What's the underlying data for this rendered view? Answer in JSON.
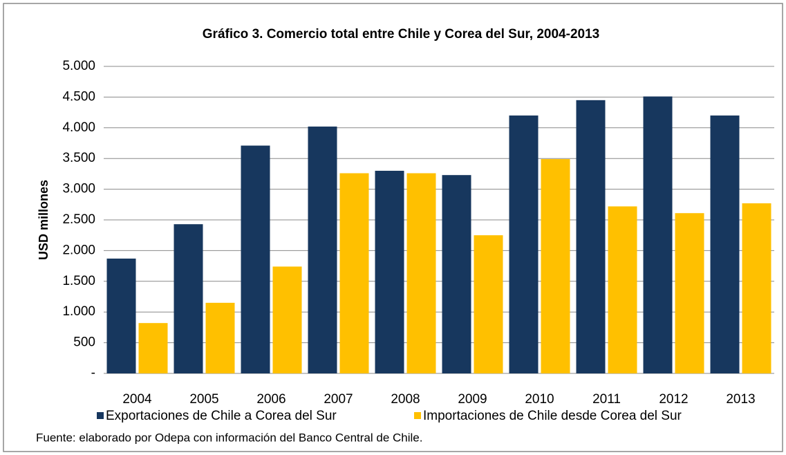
{
  "chart_data": {
    "type": "bar",
    "title": "Gráfico 3. Comercio total entre Chile y Corea del Sur, 2004-2013",
    "ylabel": "USD millones",
    "categories": [
      "2004",
      "2005",
      "2006",
      "2007",
      "2008",
      "2009",
      "2010",
      "2011",
      "2012",
      "2013"
    ],
    "series": [
      {
        "name": "Exportaciones de Chile a Corea del Sur",
        "color": "#17375e",
        "values": [
          1870,
          2430,
          3710,
          4020,
          3300,
          3230,
          4200,
          4450,
          4510,
          4200
        ]
      },
      {
        "name": "Importaciones de Chile desde Corea del Sur",
        "color": "#ffc000",
        "values": [
          820,
          1150,
          1740,
          3260,
          3260,
          2250,
          3490,
          2720,
          2610,
          2770
        ]
      }
    ],
    "ylim": [
      0,
      5000
    ],
    "yticks": [
      {
        "value": 0,
        "label": "-"
      },
      500,
      {
        "value": 1000,
        "label": "1.000"
      },
      {
        "value": 1500,
        "label": "1.500"
      },
      {
        "value": 2000,
        "label": "2.000"
      },
      {
        "value": 2500,
        "label": "2.500"
      },
      {
        "value": 3000,
        "label": "3.000"
      },
      {
        "value": 3500,
        "label": "3.500"
      },
      {
        "value": 4000,
        "label": "4.000"
      },
      {
        "value": 4500,
        "label": "4.500"
      },
      {
        "value": 5000,
        "label": "5.000"
      }
    ],
    "grid": true,
    "legend": "bottom",
    "source": "Fuente: elaborado por Odepa con información del Banco Central de Chile."
  }
}
